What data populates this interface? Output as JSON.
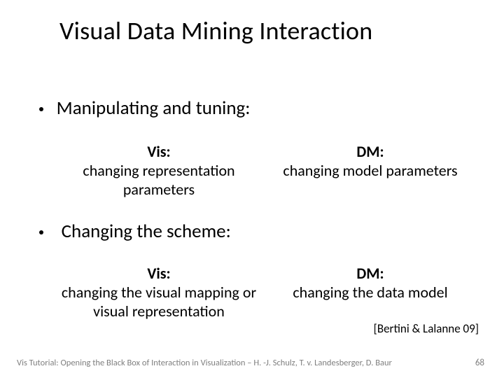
{
  "title": "Visual Data Mining Interaction",
  "bullets": [
    {
      "text": "Manipulating and tuning:"
    },
    {
      "text": "Changing the scheme:"
    }
  ],
  "sections": [
    {
      "vis_label": "Vis:",
      "vis_text": "changing representation parameters",
      "dm_label": "DM:",
      "dm_text": "changing model parameters"
    },
    {
      "vis_label": "Vis:",
      "vis_text": "changing the visual mapping or visual representation",
      "dm_label": "DM:",
      "dm_text": "changing the data model"
    }
  ],
  "citation": "[Bertini & Lalanne 09]",
  "footer": "Vis Tutorial: Opening the Black Box of Interaction in Visualization – H. -J. Schulz, T. v. Landesberger, D. Baur",
  "page_number": "68",
  "colors": {
    "text": "#000000",
    "footer": "#7f7f7f",
    "background": "#ffffff"
  },
  "fonts": {
    "title_size_pt": 36,
    "bullet_size_pt": 27,
    "body_size_pt": 22,
    "citation_size_pt": 17,
    "footer_size_pt": 12.5
  }
}
